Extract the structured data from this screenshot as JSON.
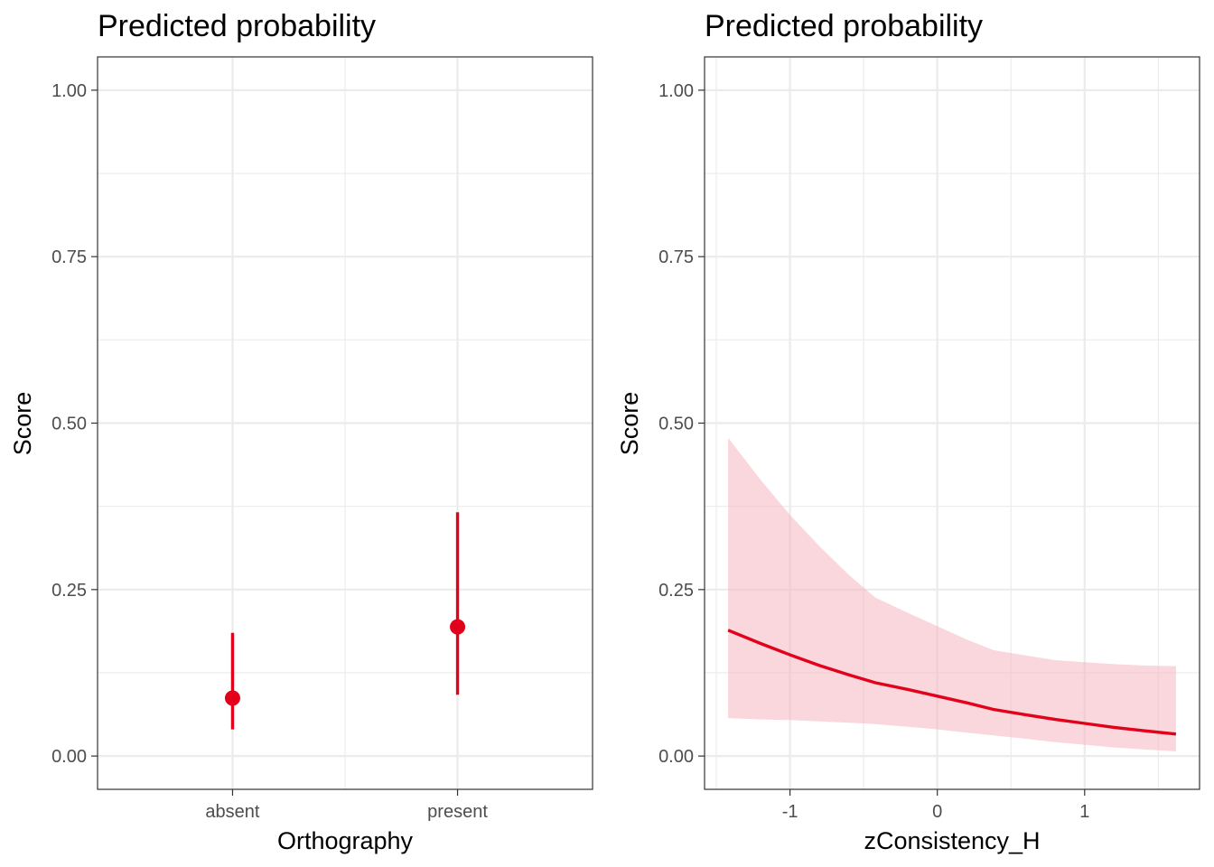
{
  "colors": {
    "accent": "#e2001a",
    "ribbon": "#f4b6c0",
    "grid": "#ebebeb",
    "border": "#333333",
    "tick_text": "#4d4d4d"
  },
  "chart_data": [
    {
      "type": "scatter",
      "subtype": "point-errorbar",
      "title": "Predicted probability",
      "xlabel": "Orthography",
      "ylabel": "Score",
      "categories": [
        "absent",
        "present"
      ],
      "values": [
        0.087,
        0.194
      ],
      "ci_lower": [
        0.04,
        0.092
      ],
      "ci_upper": [
        0.185,
        0.366
      ],
      "ylim": [
        -0.05,
        1.05
      ],
      "yticks": [
        0,
        0.25,
        0.5,
        0.75,
        1
      ],
      "ytick_labels": [
        "0.00",
        "0.25",
        "0.50",
        "0.75",
        "1.00"
      ],
      "grid": true,
      "legend": "none"
    },
    {
      "type": "line",
      "subtype": "line-ribbon",
      "title": "Predicted probability",
      "xlabel": "zConsistency_H",
      "ylabel": "Score",
      "x": [
        -1.42,
        -1.2,
        -1.0,
        -0.8,
        -0.6,
        -0.42,
        -0.2,
        0.0,
        0.2,
        0.38,
        0.6,
        0.8,
        1.0,
        1.2,
        1.4,
        1.62
      ],
      "y": [
        0.189,
        0.169,
        0.152,
        0.136,
        0.122,
        0.11,
        0.1,
        0.09,
        0.08,
        0.07,
        0.062,
        0.055,
        0.049,
        0.043,
        0.038,
        0.033
      ],
      "lower": [
        0.057,
        0.055,
        0.054,
        0.052,
        0.05,
        0.048,
        0.044,
        0.04,
        0.035,
        0.031,
        0.026,
        0.021,
        0.017,
        0.013,
        0.01,
        0.007
      ],
      "upper": [
        0.478,
        0.415,
        0.362,
        0.315,
        0.272,
        0.238,
        0.215,
        0.195,
        0.175,
        0.159,
        0.151,
        0.144,
        0.141,
        0.138,
        0.136,
        0.135
      ],
      "xlim": [
        -1.58,
        1.78
      ],
      "ylim": [
        -0.05,
        1.05
      ],
      "xticks": [
        -1,
        0,
        1
      ],
      "xtick_labels": [
        "-1",
        "0",
        "1"
      ],
      "yticks": [
        0,
        0.25,
        0.5,
        0.75,
        1
      ],
      "ytick_labels": [
        "0.00",
        "0.25",
        "0.50",
        "0.75",
        "1.00"
      ],
      "grid": true,
      "legend": "none"
    }
  ]
}
